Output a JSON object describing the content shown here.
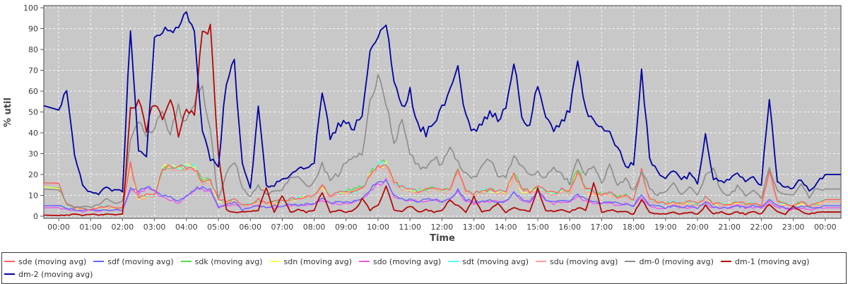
{
  "chart_data": {
    "type": "line",
    "title": "",
    "xlabel": "Time",
    "ylabel": "% util",
    "ylim": [
      0,
      100
    ],
    "x_range_hours": [
      0,
      24
    ],
    "sample_step_hours": 0.25,
    "grid": "on",
    "legend_position": "bottom",
    "legend_row_break_index": 9,
    "plot_bg": "#c8c8c8",
    "plot_border": "#7a7a7a",
    "grid_color": "#ffffff",
    "axis_text_color": "#3d3d3d",
    "y_ticks": [
      0,
      10,
      20,
      30,
      40,
      50,
      60,
      70,
      80,
      90,
      100
    ],
    "x_tick_labels": [
      "00:00",
      "01:00",
      "02:00",
      "03:00",
      "04:00",
      "05:00",
      "06:00",
      "07:00",
      "08:00",
      "09:00",
      "10:00",
      "11:00",
      "12:00",
      "13:00",
      "14:00",
      "15:00",
      "16:00",
      "17:00",
      "18:00",
      "19:00",
      "20:00",
      "21:00",
      "22:00",
      "23:00",
      "00:00"
    ],
    "draw_order": [
      "sdk",
      "sdn",
      "sdt",
      "sdu",
      "sdo",
      "sdf",
      "sde",
      "dm-0",
      "dm-1",
      "dm-2"
    ],
    "series": [
      {
        "name": "sde",
        "legend_label": "sde (moving avg)",
        "color": "#ff5f5f",
        "width": 1.4,
        "values": [
          16,
          6,
          4,
          4,
          3,
          4,
          5,
          4,
          4,
          25,
          9,
          10,
          10,
          23,
          24,
          23,
          24,
          23,
          16,
          17,
          8,
          7,
          8,
          5,
          6,
          8,
          6,
          7,
          8,
          8,
          9,
          9,
          10,
          15,
          10,
          11,
          12,
          12,
          13,
          20,
          24,
          25,
          16,
          14,
          13,
          12,
          13,
          14,
          12,
          13,
          22,
          12,
          11,
          12,
          13,
          12,
          12,
          20,
          13,
          12,
          14,
          12,
          11,
          13,
          12,
          22,
          13,
          12,
          10,
          11,
          9,
          10,
          8,
          22,
          8,
          7,
          6,
          7,
          6,
          7,
          6,
          9,
          6,
          6,
          6,
          7,
          6,
          6,
          5,
          22,
          7,
          6,
          5,
          7,
          5,
          6,
          8
        ]
      },
      {
        "name": "sdf",
        "legend_label": "sdf (moving avg)",
        "color": "#6464ff",
        "width": 1.4,
        "values": [
          5,
          4,
          3,
          3,
          3,
          3,
          3,
          3,
          3,
          13,
          12,
          14,
          13,
          10,
          9,
          7,
          10,
          13,
          14,
          13,
          4,
          6,
          7,
          3,
          4,
          5,
          4,
          5,
          5,
          6,
          5,
          6,
          6,
          9,
          6,
          7,
          7,
          7,
          8,
          13,
          16,
          17,
          10,
          8,
          8,
          7,
          8,
          8,
          7,
          8,
          13,
          8,
          7,
          7,
          8,
          7,
          7,
          12,
          8,
          7,
          12,
          8,
          7,
          7,
          7,
          11,
          8,
          7,
          6,
          7,
          6,
          6,
          5,
          10,
          5,
          5,
          4,
          5,
          4,
          5,
          4,
          7,
          4,
          4,
          4,
          5,
          4,
          5,
          4,
          8,
          5,
          4,
          4,
          5,
          4,
          4,
          5
        ]
      },
      {
        "name": "sdk",
        "legend_label": "sdk (moving avg)",
        "color": "#4ade4a",
        "width": 1.4,
        "values": [
          14,
          5,
          4,
          4,
          3,
          4,
          5,
          4,
          4,
          24,
          9,
          9,
          10,
          23,
          24,
          24,
          23,
          24,
          17,
          18,
          8,
          7,
          7,
          5,
          6,
          7,
          6,
          7,
          7,
          8,
          9,
          9,
          10,
          14,
          10,
          11,
          12,
          13,
          14,
          21,
          25,
          26,
          16,
          14,
          13,
          12,
          13,
          14,
          12,
          13,
          23,
          12,
          11,
          12,
          13,
          12,
          12,
          21,
          13,
          12,
          14,
          12,
          11,
          13,
          12,
          23,
          13,
          12,
          10,
          11,
          9,
          10,
          8,
          23,
          8,
          7,
          6,
          7,
          6,
          7,
          6,
          9,
          6,
          6,
          6,
          7,
          6,
          6,
          5,
          23,
          7,
          6,
          5,
          7,
          5,
          6,
          8
        ]
      },
      {
        "name": "sdn",
        "legend_label": "sdn (moving avg)",
        "color": "#ffff55",
        "width": 1.4,
        "values": [
          14,
          5,
          4,
          3,
          3,
          4,
          4,
          4,
          4,
          23,
          8,
          9,
          10,
          24,
          23,
          24,
          24,
          23,
          16,
          17,
          7,
          7,
          7,
          5,
          6,
          7,
          6,
          6,
          7,
          8,
          8,
          9,
          10,
          14,
          10,
          11,
          11,
          12,
          13,
          20,
          24,
          25,
          16,
          14,
          12,
          12,
          12,
          13,
          12,
          12,
          22,
          12,
          11,
          11,
          12,
          12,
          11,
          20,
          12,
          12,
          13,
          12,
          11,
          12,
          12,
          22,
          12,
          11,
          10,
          10,
          9,
          10,
          8,
          22,
          8,
          7,
          6,
          6,
          6,
          6,
          6,
          8,
          6,
          6,
          6,
          6,
          6,
          6,
          5,
          22,
          6,
          6,
          5,
          6,
          5,
          6,
          7
        ]
      },
      {
        "name": "sdo",
        "legend_label": "sdo (moving avg)",
        "color": "#ee55ee",
        "width": 1.4,
        "values": [
          4,
          3,
          3,
          2,
          3,
          2,
          3,
          3,
          3,
          12,
          11,
          13,
          12,
          9,
          8,
          6,
          9,
          12,
          13,
          12,
          4,
          5,
          6,
          3,
          4,
          5,
          4,
          4,
          5,
          5,
          5,
          5,
          6,
          8,
          6,
          6,
          6,
          7,
          8,
          12,
          15,
          17,
          9,
          8,
          8,
          7,
          7,
          8,
          7,
          8,
          12,
          7,
          6,
          7,
          7,
          7,
          7,
          11,
          7,
          7,
          12,
          7,
          6,
          7,
          7,
          10,
          7,
          6,
          6,
          6,
          5,
          6,
          5,
          9,
          5,
          4,
          4,
          5,
          4,
          4,
          4,
          6,
          4,
          4,
          4,
          5,
          4,
          4,
          4,
          7,
          4,
          4,
          3,
          4,
          3,
          4,
          4
        ]
      },
      {
        "name": "sdt",
        "legend_label": "sdt (moving avg)",
        "color": "#55ffff",
        "width": 1.4,
        "values": [
          15,
          5,
          4,
          4,
          3,
          4,
          5,
          4,
          4,
          24,
          9,
          9,
          10,
          23,
          24,
          23,
          24,
          24,
          16,
          17,
          8,
          7,
          8,
          5,
          6,
          7,
          6,
          7,
          7,
          8,
          9,
          9,
          10,
          15,
          10,
          11,
          12,
          12,
          13,
          20,
          25,
          25,
          16,
          14,
          13,
          12,
          12,
          14,
          12,
          13,
          22,
          12,
          11,
          12,
          12,
          12,
          12,
          20,
          13,
          12,
          13,
          12,
          11,
          13,
          12,
          22,
          13,
          12,
          10,
          11,
          9,
          10,
          8,
          22,
          8,
          7,
          6,
          7,
          6,
          7,
          6,
          9,
          6,
          6,
          6,
          7,
          6,
          6,
          5,
          22,
          7,
          6,
          5,
          7,
          5,
          6,
          8
        ]
      },
      {
        "name": "sdu",
        "legend_label": "sdu (moving avg)",
        "color": "#ff9c9c",
        "width": 1.4,
        "values": [
          15,
          5,
          4,
          3,
          3,
          4,
          4,
          4,
          4,
          24,
          8,
          9,
          10,
          22,
          23,
          22,
          23,
          22,
          15,
          16,
          8,
          6,
          7,
          5,
          5,
          7,
          6,
          6,
          7,
          8,
          8,
          9,
          9,
          14,
          10,
          10,
          11,
          12,
          13,
          19,
          23,
          24,
          15,
          13,
          12,
          11,
          12,
          13,
          11,
          12,
          21,
          11,
          10,
          11,
          12,
          11,
          11,
          19,
          12,
          11,
          13,
          11,
          10,
          12,
          11,
          21,
          12,
          11,
          10,
          10,
          9,
          9,
          8,
          21,
          7,
          7,
          6,
          6,
          5,
          6,
          5,
          8,
          6,
          5,
          5,
          6,
          5,
          6,
          5,
          21,
          6,
          5,
          5,
          6,
          5,
          5,
          7
        ]
      },
      {
        "name": "dm-0",
        "legend_label": "dm-0 (moving avg)",
        "color": "#8c8c8c",
        "width": 1.6,
        "values": [
          13,
          6,
          4,
          5,
          4,
          6,
          8,
          6,
          7,
          35,
          45,
          38,
          42,
          50,
          40,
          52,
          45,
          55,
          62,
          40,
          8,
          20,
          27,
          13,
          10,
          15,
          10,
          12,
          13,
          18,
          20,
          14,
          16,
          25,
          18,
          20,
          26,
          30,
          28,
          55,
          67,
          55,
          35,
          45,
          30,
          24,
          22,
          28,
          25,
          32,
          26,
          20,
          18,
          24,
          28,
          20,
          18,
          30,
          24,
          20,
          22,
          18,
          24,
          20,
          16,
          28,
          20,
          24,
          16,
          25,
          15,
          18,
          12,
          22,
          14,
          10,
          12,
          16,
          10,
          14,
          10,
          20,
          22,
          12,
          10,
          14,
          10,
          13,
          9,
          24,
          12,
          10,
          11,
          15,
          9,
          14,
          13
        ]
      },
      {
        "name": "dm-1",
        "legend_label": "dm-1 (moving avg)",
        "color": "#b40000",
        "width": 1.7,
        "values": [
          0.5,
          0.5,
          1,
          0.5,
          1,
          0.5,
          1,
          0.5,
          1,
          50,
          55,
          42,
          55,
          45,
          58,
          40,
          52,
          50,
          88,
          90,
          30,
          3,
          2,
          2,
          2,
          3,
          13,
          2,
          10,
          2,
          3,
          2,
          3,
          12,
          2,
          3,
          2,
          3,
          8,
          3,
          5,
          14,
          3,
          2,
          5,
          2,
          3,
          2,
          3,
          8,
          5,
          2,
          9,
          2,
          3,
          6,
          2,
          4,
          3,
          2,
          13,
          3,
          2,
          3,
          2,
          4,
          3,
          16,
          2,
          3,
          2,
          2,
          1,
          8,
          2,
          1,
          1,
          2,
          1,
          2,
          1,
          5,
          1,
          2,
          1,
          2,
          1,
          2,
          1,
          6,
          2,
          1,
          5,
          2,
          1,
          2,
          2
        ]
      },
      {
        "name": "dm-2",
        "legend_label": "dm-2 (moving avg)",
        "color": "#0000a0",
        "width": 1.8,
        "values": [
          53,
          59,
          30,
          14,
          12,
          10,
          14,
          12,
          12,
          91,
          30,
          28,
          85,
          90,
          88,
          92,
          96,
          90,
          40,
          28,
          25,
          65,
          74,
          25,
          13,
          52,
          14,
          15,
          18,
          20,
          22,
          24,
          26,
          60,
          38,
          44,
          46,
          42,
          50,
          80,
          85,
          92,
          65,
          52,
          60,
          44,
          40,
          46,
          52,
          60,
          71,
          48,
          40,
          44,
          50,
          47,
          52,
          75,
          48,
          44,
          63,
          48,
          42,
          46,
          50,
          75,
          50,
          46,
          44,
          40,
          32,
          25,
          24,
          70,
          28,
          22,
          18,
          22,
          17,
          20,
          16,
          40,
          18,
          16,
          17,
          21,
          16,
          19,
          15,
          58,
          16,
          14,
          13,
          18,
          12,
          16,
          20
        ]
      }
    ]
  }
}
